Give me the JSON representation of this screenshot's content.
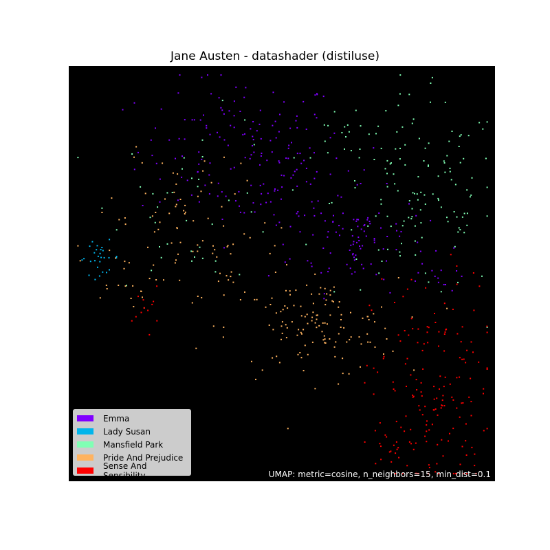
{
  "chart_data": {
    "type": "scatter",
    "title": "Jane Austen - datashader (distiluse)",
    "annotation": "UMAP: metric=cosine, n_neighbors=15, min_dist=0.1",
    "background": "#000000",
    "legend_position": "bottom-left",
    "xlim": [
      0,
      1
    ],
    "ylim": [
      0,
      1
    ],
    "series": [
      {
        "name": "Emma",
        "color": "#8000ff",
        "clusters": [
          {
            "cx": 0.4,
            "cy": 0.8,
            "sx": 0.12,
            "sy": 0.09,
            "n": 140
          },
          {
            "cx": 0.68,
            "cy": 0.58,
            "sx": 0.08,
            "sy": 0.06,
            "n": 90
          },
          {
            "cx": 0.55,
            "cy": 0.7,
            "sx": 0.08,
            "sy": 0.06,
            "n": 40
          },
          {
            "cx": 0.88,
            "cy": 0.5,
            "sx": 0.03,
            "sy": 0.02,
            "n": 10
          }
        ]
      },
      {
        "name": "Lady Susan",
        "color": "#00b5eb",
        "clusters": [
          {
            "cx": 0.07,
            "cy": 0.54,
            "sx": 0.025,
            "sy": 0.02,
            "n": 28
          }
        ]
      },
      {
        "name": "Mansfield Park",
        "color": "#80ffb4",
        "clusters": [
          {
            "cx": 0.82,
            "cy": 0.68,
            "sx": 0.1,
            "sy": 0.12,
            "n": 130
          },
          {
            "cx": 0.66,
            "cy": 0.83,
            "sx": 0.06,
            "sy": 0.05,
            "n": 20
          },
          {
            "cx": 0.3,
            "cy": 0.68,
            "sx": 0.1,
            "sy": 0.1,
            "n": 40
          }
        ]
      },
      {
        "name": "Pride And Prejudice",
        "color": "#ffb360",
        "clusters": [
          {
            "cx": 0.57,
            "cy": 0.37,
            "sx": 0.1,
            "sy": 0.06,
            "n": 130
          },
          {
            "cx": 0.32,
            "cy": 0.55,
            "sx": 0.12,
            "sy": 0.08,
            "n": 60
          },
          {
            "cx": 0.25,
            "cy": 0.72,
            "sx": 0.07,
            "sy": 0.06,
            "n": 30
          },
          {
            "cx": 0.13,
            "cy": 0.5,
            "sx": 0.04,
            "sy": 0.03,
            "n": 15
          }
        ]
      },
      {
        "name": "Sense And Sensibility",
        "color": "#ff0000",
        "clusters": [
          {
            "cx": 0.85,
            "cy": 0.22,
            "sx": 0.07,
            "sy": 0.14,
            "n": 150
          },
          {
            "cx": 0.78,
            "cy": 0.08,
            "sx": 0.06,
            "sy": 0.04,
            "n": 30
          },
          {
            "cx": 0.18,
            "cy": 0.42,
            "sx": 0.015,
            "sy": 0.025,
            "n": 12
          }
        ]
      }
    ]
  }
}
